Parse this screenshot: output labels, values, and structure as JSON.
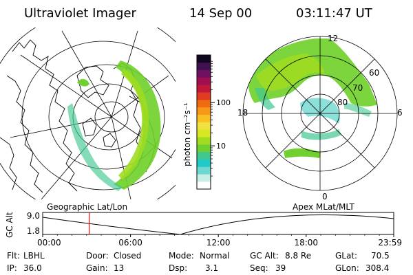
{
  "header": {
    "title": "Ultraviolet Imager",
    "date": "14 Sep 00",
    "time": "03:11:47 UT"
  },
  "colorbar": {
    "unit_label": "photon cm⁻²s⁻¹",
    "scale": "log",
    "ticks": [
      {
        "value": 10,
        "label": "10"
      },
      {
        "value": 100,
        "label": "100"
      }
    ],
    "colors": [
      "#ffffff",
      "#c8eee8",
      "#70d8d0",
      "#20c8c8",
      "#40c890",
      "#70d030",
      "#a0dc20",
      "#d8e820",
      "#f0e040",
      "#f8c020",
      "#f89818",
      "#f06a10",
      "#e03a20",
      "#c01838",
      "#a01050",
      "#701060",
      "#401050",
      "#100820"
    ]
  },
  "left_panel": {
    "caption": "Geographic Lat/Lon"
  },
  "right_panel": {
    "caption": "Apex MLat/MLT",
    "lat_labels": [
      "60",
      "70",
      "80"
    ],
    "mlt_labels": {
      "top": "12",
      "left": "18",
      "right": "6",
      "bottom": "0"
    }
  },
  "timeline": {
    "ylabel": "GC Alt",
    "y_ticks": [
      "9.0",
      "1.8"
    ],
    "x_ticks": [
      "00:00",
      "06:00",
      "12:00",
      "18:00",
      "23:59"
    ],
    "marker_time": "03:11"
  },
  "footer": {
    "flt_label": "Flt:",
    "flt_value": "LBHL",
    "door_label": "Door:",
    "door_value": "Closed",
    "mode_label": "Mode:",
    "mode_value": "Normal",
    "gcalt_label": "GC Alt:",
    "gcalt_value": "8.8 Re",
    "glat_label": "GLat:",
    "glat_value": "70.5",
    "ip_label": "IP:",
    "ip_value": "36.0",
    "gain_label": "Gain:",
    "gain_value": "13",
    "dsp_label": "Dsp:",
    "dsp_value": "3.1",
    "seq_label": "Seq:",
    "seq_value": "39",
    "glon_label": "GLon:",
    "glon_value": "308.4"
  },
  "colors": {
    "marker": "#ff0000",
    "lines": "#000000"
  }
}
